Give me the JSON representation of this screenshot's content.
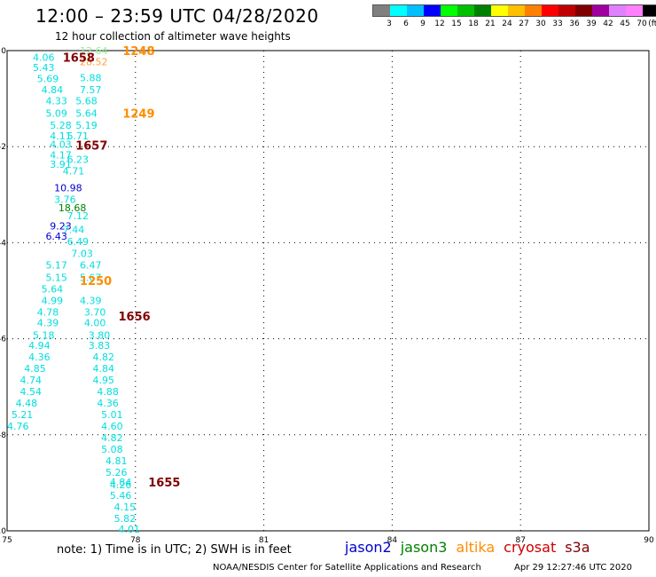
{
  "header": {
    "title": "12:00 – 23:59 UTC 04/28/2020",
    "subtitle": "12 hour collection of altimeter wave heights"
  },
  "legend": {
    "colors": [
      "#808080",
      "#00ffff",
      "#00c0ff",
      "#0000ff",
      "#00ff00",
      "#00c000",
      "#008000",
      "#ffff00",
      "#ffc000",
      "#ff8000",
      "#ff0000",
      "#c00000",
      "#800000",
      "#a000a0",
      "#e080ff",
      "#ff80ff",
      "#000000"
    ],
    "labels": [
      "3",
      "6",
      "9",
      "12",
      "15",
      "18",
      "21",
      "24",
      "27",
      "30",
      "33",
      "36",
      "39",
      "42",
      "45",
      "70",
      "(ft)"
    ]
  },
  "footer": {
    "note": "note:  1) Time is in UTC;  2) SWH is in feet",
    "satellites": [
      {
        "name": "jason2",
        "color": "#0000cc"
      },
      {
        "name": "jason3",
        "color": "#008000"
      },
      {
        "name": "altika",
        "color": "#ff8c00"
      },
      {
        "name": "cryosat",
        "color": "#cc0000"
      },
      {
        "name": "s3a",
        "color": "#800000"
      }
    ],
    "credit": "NOAA/NESDIS Center for Satellite Applications and Research",
    "generated": "Apr 29 12:27:46 UTC 2020"
  },
  "chart_data": {
    "type": "scatter",
    "xlim": [
      75,
      90
    ],
    "ylim": [
      -10,
      0
    ],
    "xticks": [
      "75",
      "78",
      "81",
      "84",
      "87",
      "90"
    ],
    "yticks": [
      "0",
      "-2",
      "-4",
      "-6",
      "-8",
      "-10"
    ],
    "grid": true,
    "time_labels": [
      {
        "text": "1248",
        "x": 77.7,
        "y": 0.0,
        "color": "#ff8c00"
      },
      {
        "text": "1658",
        "x": 76.3,
        "y": -0.14,
        "color": "#800000"
      },
      {
        "text": "1249",
        "x": 77.7,
        "y": -1.3,
        "color": "#ff8c00"
      },
      {
        "text": "1657",
        "x": 76.6,
        "y": -1.97,
        "color": "#800000"
      },
      {
        "text": "1250",
        "x": 76.7,
        "y": -4.79,
        "color": "#ff8c00"
      },
      {
        "text": "1656",
        "x": 77.6,
        "y": -5.53,
        "color": "#800000"
      },
      {
        "text": "1655",
        "x": 78.3,
        "y": -8.98,
        "color": "#800000"
      }
    ],
    "points": [
      {
        "text": "12.64",
        "x": 76.7,
        "y": 0.0,
        "color": "#90ee90"
      },
      {
        "text": "4.06",
        "x": 75.6,
        "y": -0.14,
        "color": "#00dede"
      },
      {
        "text": "28.52",
        "x": 76.7,
        "y": -0.23,
        "color": "#ffa040"
      },
      {
        "text": "5.43",
        "x": 75.6,
        "y": -0.35,
        "color": "#00dede"
      },
      {
        "text": "5.69",
        "x": 75.7,
        "y": -0.58,
        "color": "#00dede"
      },
      {
        "text": "5.88",
        "x": 76.7,
        "y": -0.56,
        "color": "#00dede"
      },
      {
        "text": "4.84",
        "x": 75.8,
        "y": -0.81,
        "color": "#00dede"
      },
      {
        "text": "7.57",
        "x": 76.7,
        "y": -0.81,
        "color": "#00dede"
      },
      {
        "text": "4.33",
        "x": 75.9,
        "y": -1.04,
        "color": "#00dede"
      },
      {
        "text": "5.68",
        "x": 76.6,
        "y": -1.04,
        "color": "#00dede"
      },
      {
        "text": "5.09",
        "x": 75.9,
        "y": -1.3,
        "color": "#00dede"
      },
      {
        "text": "5.64",
        "x": 76.6,
        "y": -1.3,
        "color": "#00dede"
      },
      {
        "text": "5.28",
        "x": 76.0,
        "y": -1.55,
        "color": "#00dede"
      },
      {
        "text": "5.19",
        "x": 76.6,
        "y": -1.55,
        "color": "#00dede"
      },
      {
        "text": "4.11",
        "x": 76.0,
        "y": -1.77,
        "color": "#00dede"
      },
      {
        "text": "5.71",
        "x": 76.4,
        "y": -1.77,
        "color": "#00dede"
      },
      {
        "text": "4.03",
        "x": 76.0,
        "y": -1.95,
        "color": "#00dede"
      },
      {
        "text": "4.17",
        "x": 76.0,
        "y": -2.17,
        "color": "#00dede"
      },
      {
        "text": "6.23",
        "x": 76.4,
        "y": -2.26,
        "color": "#00dede"
      },
      {
        "text": "3.91",
        "x": 76.0,
        "y": -2.37,
        "color": "#00dede"
      },
      {
        "text": "4.71",
        "x": 76.3,
        "y": -2.5,
        "color": "#00dede"
      },
      {
        "text": "10.98",
        "x": 76.1,
        "y": -2.86,
        "color": "#0000cc"
      },
      {
        "text": "3.76",
        "x": 76.1,
        "y": -3.1,
        "color": "#00dede"
      },
      {
        "text": "18.68",
        "x": 76.2,
        "y": -3.27,
        "color": "#008000"
      },
      {
        "text": "7.12",
        "x": 76.4,
        "y": -3.44,
        "color": "#00dede"
      },
      {
        "text": "9.23",
        "x": 76.0,
        "y": -3.65,
        "color": "#0000cc"
      },
      {
        "text": "7.44",
        "x": 76.3,
        "y": -3.72,
        "color": "#00dede"
      },
      {
        "text": "6.43",
        "x": 75.9,
        "y": -3.86,
        "color": "#0000cc"
      },
      {
        "text": "6.49",
        "x": 76.4,
        "y": -3.97,
        "color": "#00dede"
      },
      {
        "text": "7.03",
        "x": 76.5,
        "y": -4.22,
        "color": "#00dede"
      },
      {
        "text": "5.17",
        "x": 75.9,
        "y": -4.46,
        "color": "#00dede"
      },
      {
        "text": "6.47",
        "x": 76.7,
        "y": -4.46,
        "color": "#00dede"
      },
      {
        "text": "5.15",
        "x": 75.9,
        "y": -4.72,
        "color": "#00dede"
      },
      {
        "text": "5.67",
        "x": 76.7,
        "y": -4.72,
        "color": "#00dede"
      },
      {
        "text": "5.64",
        "x": 75.8,
        "y": -4.96,
        "color": "#00dede"
      },
      {
        "text": "4.99",
        "x": 75.8,
        "y": -5.2,
        "color": "#00dede"
      },
      {
        "text": "4.39",
        "x": 76.7,
        "y": -5.2,
        "color": "#00dede"
      },
      {
        "text": "4.78",
        "x": 75.7,
        "y": -5.44,
        "color": "#00dede"
      },
      {
        "text": "3.70",
        "x": 76.8,
        "y": -5.44,
        "color": "#00dede"
      },
      {
        "text": "4.39",
        "x": 75.7,
        "y": -5.67,
        "color": "#00dede"
      },
      {
        "text": "4.00",
        "x": 76.8,
        "y": -5.67,
        "color": "#00dede"
      },
      {
        "text": "5.18",
        "x": 75.6,
        "y": -5.92,
        "color": "#00dede"
      },
      {
        "text": "3.80",
        "x": 76.9,
        "y": -5.92,
        "color": "#00dede"
      },
      {
        "text": "4.94",
        "x": 75.5,
        "y": -6.14,
        "color": "#00dede"
      },
      {
        "text": "3.83",
        "x": 76.9,
        "y": -6.14,
        "color": "#00dede"
      },
      {
        "text": "4.36",
        "x": 75.5,
        "y": -6.38,
        "color": "#00dede"
      },
      {
        "text": "4.82",
        "x": 77.0,
        "y": -6.38,
        "color": "#00dede"
      },
      {
        "text": "4.85",
        "x": 75.4,
        "y": -6.62,
        "color": "#00dede"
      },
      {
        "text": "4.84",
        "x": 77.0,
        "y": -6.62,
        "color": "#00dede"
      },
      {
        "text": "4.74",
        "x": 75.3,
        "y": -6.86,
        "color": "#00dede"
      },
      {
        "text": "4.95",
        "x": 77.0,
        "y": -6.86,
        "color": "#00dede"
      },
      {
        "text": "4.54",
        "x": 75.3,
        "y": -7.1,
        "color": "#00dede"
      },
      {
        "text": "4.88",
        "x": 77.1,
        "y": -7.1,
        "color": "#00dede"
      },
      {
        "text": "4.48",
        "x": 75.2,
        "y": -7.34,
        "color": "#00dede"
      },
      {
        "text": "4.36",
        "x": 77.1,
        "y": -7.34,
        "color": "#00dede"
      },
      {
        "text": "5.21",
        "x": 75.1,
        "y": -7.58,
        "color": "#00dede"
      },
      {
        "text": "5.01",
        "x": 77.2,
        "y": -7.58,
        "color": "#00dede"
      },
      {
        "text": "4.76",
        "x": 75.0,
        "y": -7.82,
        "color": "#00dede"
      },
      {
        "text": "4.60",
        "x": 77.2,
        "y": -7.82,
        "color": "#00dede"
      },
      {
        "text": "4.82",
        "x": 77.2,
        "y": -8.06,
        "color": "#00dede"
      },
      {
        "text": "5.08",
        "x": 77.2,
        "y": -8.3,
        "color": "#00dede"
      },
      {
        "text": "4.81",
        "x": 77.3,
        "y": -8.54,
        "color": "#00dede"
      },
      {
        "text": "5.26",
        "x": 77.3,
        "y": -8.78,
        "color": "#00dede"
      },
      {
        "text": "4.84",
        "x": 77.4,
        "y": -8.98,
        "color": "#00dede"
      },
      {
        "text": "4.26",
        "x": 77.4,
        "y": -9.04,
        "color": "#00dede"
      },
      {
        "text": "5.46",
        "x": 77.4,
        "y": -9.26,
        "color": "#00dede"
      },
      {
        "text": "4.15",
        "x": 77.5,
        "y": -9.5,
        "color": "#00dede"
      },
      {
        "text": "5.82",
        "x": 77.5,
        "y": -9.74,
        "color": "#00dede"
      },
      {
        "text": "4.01",
        "x": 77.6,
        "y": -9.96,
        "color": "#00dede"
      }
    ]
  }
}
